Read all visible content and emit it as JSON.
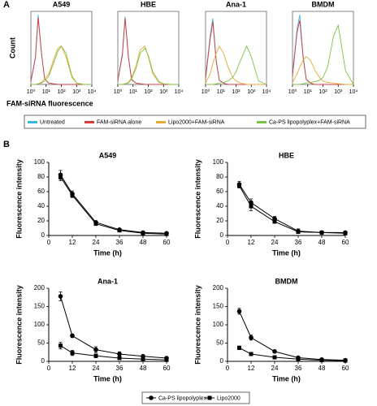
{
  "panel_labels": [
    "A",
    "B"
  ],
  "chart_data": [
    {
      "type": "line",
      "title": "A549",
      "xscale": "log",
      "ylabel": "Count",
      "xlabel": "FAM-siRNA fluorescence",
      "x": [
        1,
        2,
        3,
        5,
        8,
        15,
        30,
        60,
        100,
        200,
        500,
        1000,
        3000,
        10000
      ],
      "xlim": [
        1,
        10000
      ],
      "xticks": [
        {
          "value": 1,
          "label": "10⁰"
        },
        {
          "value": 10,
          "label": "10¹"
        },
        {
          "value": 100,
          "label": "10²"
        },
        {
          "value": 1000,
          "label": "10³"
        },
        {
          "value": 10000,
          "label": "10⁴"
        }
      ],
      "ylim": [
        0,
        105
      ],
      "series": [
        {
          "name": "Untreated",
          "color": "#3fb8d8",
          "values": [
            5,
            40,
            100,
            45,
            8,
            2,
            1,
            0,
            0,
            0,
            0,
            0,
            0,
            0
          ]
        },
        {
          "name": "FAM-siRNA alone",
          "color": "#d93a3a",
          "values": [
            4,
            38,
            96,
            44,
            8,
            2,
            1,
            0,
            0,
            0,
            0,
            0,
            0,
            0
          ]
        },
        {
          "name": "Lipo2000+FAM-siRNA",
          "color": "#e8a838",
          "values": [
            0,
            0,
            1,
            3,
            8,
            15,
            35,
            52,
            55,
            40,
            10,
            2,
            0,
            0
          ]
        },
        {
          "name": "Ca-PS lipopolyplex+FAM-siRNA",
          "color": "#7cc242",
          "values": [
            0,
            0,
            1,
            2,
            5,
            12,
            30,
            48,
            55,
            45,
            12,
            2,
            0,
            0
          ]
        }
      ]
    },
    {
      "type": "line",
      "title": "HBE",
      "xscale": "log",
      "x": [
        1,
        2,
        3,
        5,
        8,
        15,
        30,
        60,
        100,
        200,
        500,
        1000,
        3000,
        10000
      ],
      "xlim": [
        1,
        10000
      ],
      "xticks": [
        {
          "value": 1,
          "label": "10⁰"
        },
        {
          "value": 10,
          "label": "10¹"
        },
        {
          "value": 100,
          "label": "10²"
        },
        {
          "value": 1000,
          "label": "10³"
        },
        {
          "value": 10000,
          "label": "10⁴"
        }
      ],
      "ylim": [
        0,
        105
      ],
      "series": [
        {
          "name": "Untreated",
          "color": "#3fb8d8",
          "values": [
            6,
            45,
            98,
            40,
            8,
            2,
            1,
            0,
            0,
            0,
            0,
            0,
            0,
            0
          ]
        },
        {
          "name": "FAM-siRNA alone",
          "color": "#d93a3a",
          "values": [
            5,
            42,
            95,
            38,
            7,
            2,
            1,
            0,
            0,
            0,
            0,
            0,
            0,
            0
          ]
        },
        {
          "name": "Lipo2000+FAM-siRNA",
          "color": "#e8a838",
          "values": [
            0,
            0,
            1,
            3,
            10,
            25,
            50,
            55,
            40,
            15,
            3,
            1,
            0,
            0
          ]
        },
        {
          "name": "Ca-PS lipopolyplex+FAM-siRNA",
          "color": "#7cc242",
          "values": [
            0,
            0,
            1,
            2,
            8,
            22,
            45,
            52,
            42,
            18,
            4,
            1,
            0,
            0
          ]
        }
      ]
    },
    {
      "type": "line",
      "title": "Ana-1",
      "xscale": "log",
      "x": [
        1,
        2,
        3,
        5,
        8,
        15,
        30,
        60,
        100,
        200,
        500,
        1000,
        3000,
        10000
      ],
      "xlim": [
        1,
        10000
      ],
      "xticks": [
        {
          "value": 1,
          "label": "10⁰"
        },
        {
          "value": 10,
          "label": "10¹"
        },
        {
          "value": 100,
          "label": "10²"
        },
        {
          "value": 1000,
          "label": "10³"
        },
        {
          "value": 10000,
          "label": "10⁴"
        }
      ],
      "ylim": [
        0,
        105
      ],
      "series": [
        {
          "name": "Untreated",
          "color": "#3fb8d8",
          "values": [
            10,
            70,
            95,
            35,
            6,
            2,
            0,
            0,
            0,
            0,
            0,
            0,
            0,
            0
          ]
        },
        {
          "name": "FAM-siRNA alone",
          "color": "#d93a3a",
          "values": [
            8,
            65,
            90,
            33,
            6,
            2,
            0,
            0,
            0,
            0,
            0,
            0,
            0,
            0
          ]
        },
        {
          "name": "Lipo2000+FAM-siRNA",
          "color": "#e8a838",
          "values": [
            2,
            15,
            30,
            45,
            55,
            45,
            25,
            10,
            5,
            2,
            0,
            0,
            0,
            0
          ]
        },
        {
          "name": "Ca-PS lipopolyplex+FAM-siRNA",
          "color": "#7cc242",
          "values": [
            0,
            0,
            0,
            1,
            2,
            3,
            5,
            10,
            18,
            35,
            55,
            40,
            5,
            0
          ]
        }
      ]
    },
    {
      "type": "line",
      "title": "BMDM",
      "xscale": "log",
      "x": [
        1,
        2,
        3,
        5,
        8,
        15,
        30,
        60,
        100,
        200,
        500,
        1000,
        3000,
        10000
      ],
      "xlim": [
        1,
        10000
      ],
      "xticks": [
        {
          "value": 1,
          "label": "10⁰"
        },
        {
          "value": 10,
          "label": "10¹"
        },
        {
          "value": 100,
          "label": "10²"
        },
        {
          "value": 1000,
          "label": "10³"
        },
        {
          "value": 10000,
          "label": "10⁴"
        }
      ],
      "ylim": [
        0,
        105
      ],
      "series": [
        {
          "name": "Untreated",
          "color": "#3fb8d8",
          "values": [
            15,
            80,
            100,
            40,
            8,
            2,
            0,
            0,
            0,
            0,
            0,
            0,
            0,
            0
          ]
        },
        {
          "name": "FAM-siRNA alone",
          "color": "#d93a3a",
          "values": [
            12,
            75,
            92,
            38,
            7,
            2,
            0,
            0,
            0,
            0,
            0,
            0,
            0,
            0
          ]
        },
        {
          "name": "Lipo2000+FAM-siRNA",
          "color": "#e8a838",
          "values": [
            3,
            15,
            25,
            35,
            40,
            35,
            20,
            10,
            5,
            3,
            2,
            1,
            0,
            0
          ]
        },
        {
          "name": "Ca-PS lipopolyplex+FAM-siRNA",
          "color": "#7cc242",
          "values": [
            0,
            0,
            0,
            1,
            2,
            3,
            4,
            6,
            10,
            25,
            70,
            85,
            20,
            0
          ]
        }
      ]
    },
    {
      "type": "line",
      "title": "A549",
      "ylabel": "Fluorescence intensity",
      "xlabel": "Time (h)",
      "x": [
        6,
        12,
        24,
        36,
        48,
        60
      ],
      "xlim": [
        0,
        60
      ],
      "xticks": [
        0,
        12,
        24,
        36,
        48,
        60
      ],
      "ylim": [
        0,
        100
      ],
      "yticks": [
        0,
        20,
        40,
        60,
        80,
        100
      ],
      "series": [
        {
          "name": "Ca-PS lipopolyplex",
          "color": "#000000",
          "marker": "circle",
          "values": [
            83,
            57,
            18,
            8,
            4,
            3
          ],
          "errors": [
            6,
            4,
            2,
            1,
            1,
            1
          ]
        },
        {
          "name": "Lipo2000",
          "color": "#000000",
          "marker": "square",
          "values": [
            80,
            55,
            16,
            7,
            3,
            2
          ],
          "errors": [
            5,
            3,
            2,
            1,
            1,
            1
          ]
        }
      ]
    },
    {
      "type": "line",
      "title": "HBE",
      "ylabel": "Fluorescence intensity",
      "xlabel": "Time (h)",
      "x": [
        6,
        12,
        24,
        36,
        48,
        60
      ],
      "xlim": [
        0,
        60
      ],
      "xticks": [
        0,
        12,
        24,
        36,
        48,
        60
      ],
      "ylim": [
        0,
        100
      ],
      "yticks": [
        0,
        20,
        40,
        60,
        80,
        100
      ],
      "series": [
        {
          "name": "Ca-PS lipopolyplex",
          "color": "#000000",
          "marker": "circle",
          "values": [
            70,
            45,
            23,
            6,
            4,
            4
          ],
          "errors": [
            4,
            5,
            3,
            3,
            1,
            1
          ]
        },
        {
          "name": "Lipo2000",
          "color": "#000000",
          "marker": "square",
          "values": [
            68,
            40,
            19,
            5,
            4,
            3
          ],
          "errors": [
            3,
            6,
            2,
            2,
            1,
            1
          ]
        }
      ]
    },
    {
      "type": "line",
      "title": "Ana-1",
      "ylabel": "Fluorescence intensity",
      "xlabel": "Time (h)",
      "x": [
        6,
        12,
        24,
        36,
        48,
        60
      ],
      "xlim": [
        0,
        60
      ],
      "xticks": [
        0,
        12,
        24,
        36,
        48,
        60
      ],
      "ylim": [
        0,
        200
      ],
      "yticks": [
        0,
        50,
        100,
        150,
        200
      ],
      "series": [
        {
          "name": "Ca-PS lipopolyplex",
          "color": "#000000",
          "marker": "circle",
          "values": [
            178,
            70,
            32,
            20,
            14,
            9
          ],
          "errors": [
            12,
            5,
            8,
            6,
            4,
            3
          ]
        },
        {
          "name": "Lipo2000",
          "color": "#000000",
          "marker": "square",
          "values": [
            43,
            23,
            15,
            9,
            6,
            4
          ],
          "errors": [
            9,
            7,
            5,
            3,
            2,
            2
          ]
        }
      ]
    },
    {
      "type": "line",
      "title": "BMDM",
      "ylabel": "Fluorescence intensity",
      "xlabel": "Time (h)",
      "x": [
        6,
        12,
        24,
        36,
        48,
        60
      ],
      "xlim": [
        0,
        60
      ],
      "xticks": [
        0,
        12,
        24,
        36,
        48,
        60
      ],
      "ylim": [
        0,
        200
      ],
      "yticks": [
        0,
        50,
        100,
        150,
        200
      ],
      "series": [
        {
          "name": "Ca-PS lipopolyplex",
          "color": "#000000",
          "marker": "circle",
          "values": [
            137,
            65,
            27,
            10,
            5,
            3
          ],
          "errors": [
            8,
            7,
            4,
            2,
            1,
            1
          ]
        },
        {
          "name": "Lipo2000",
          "color": "#000000",
          "marker": "square",
          "values": [
            37,
            20,
            11,
            6,
            3,
            2
          ],
          "errors": [
            5,
            4,
            2,
            1,
            1,
            1
          ]
        }
      ]
    }
  ]
}
